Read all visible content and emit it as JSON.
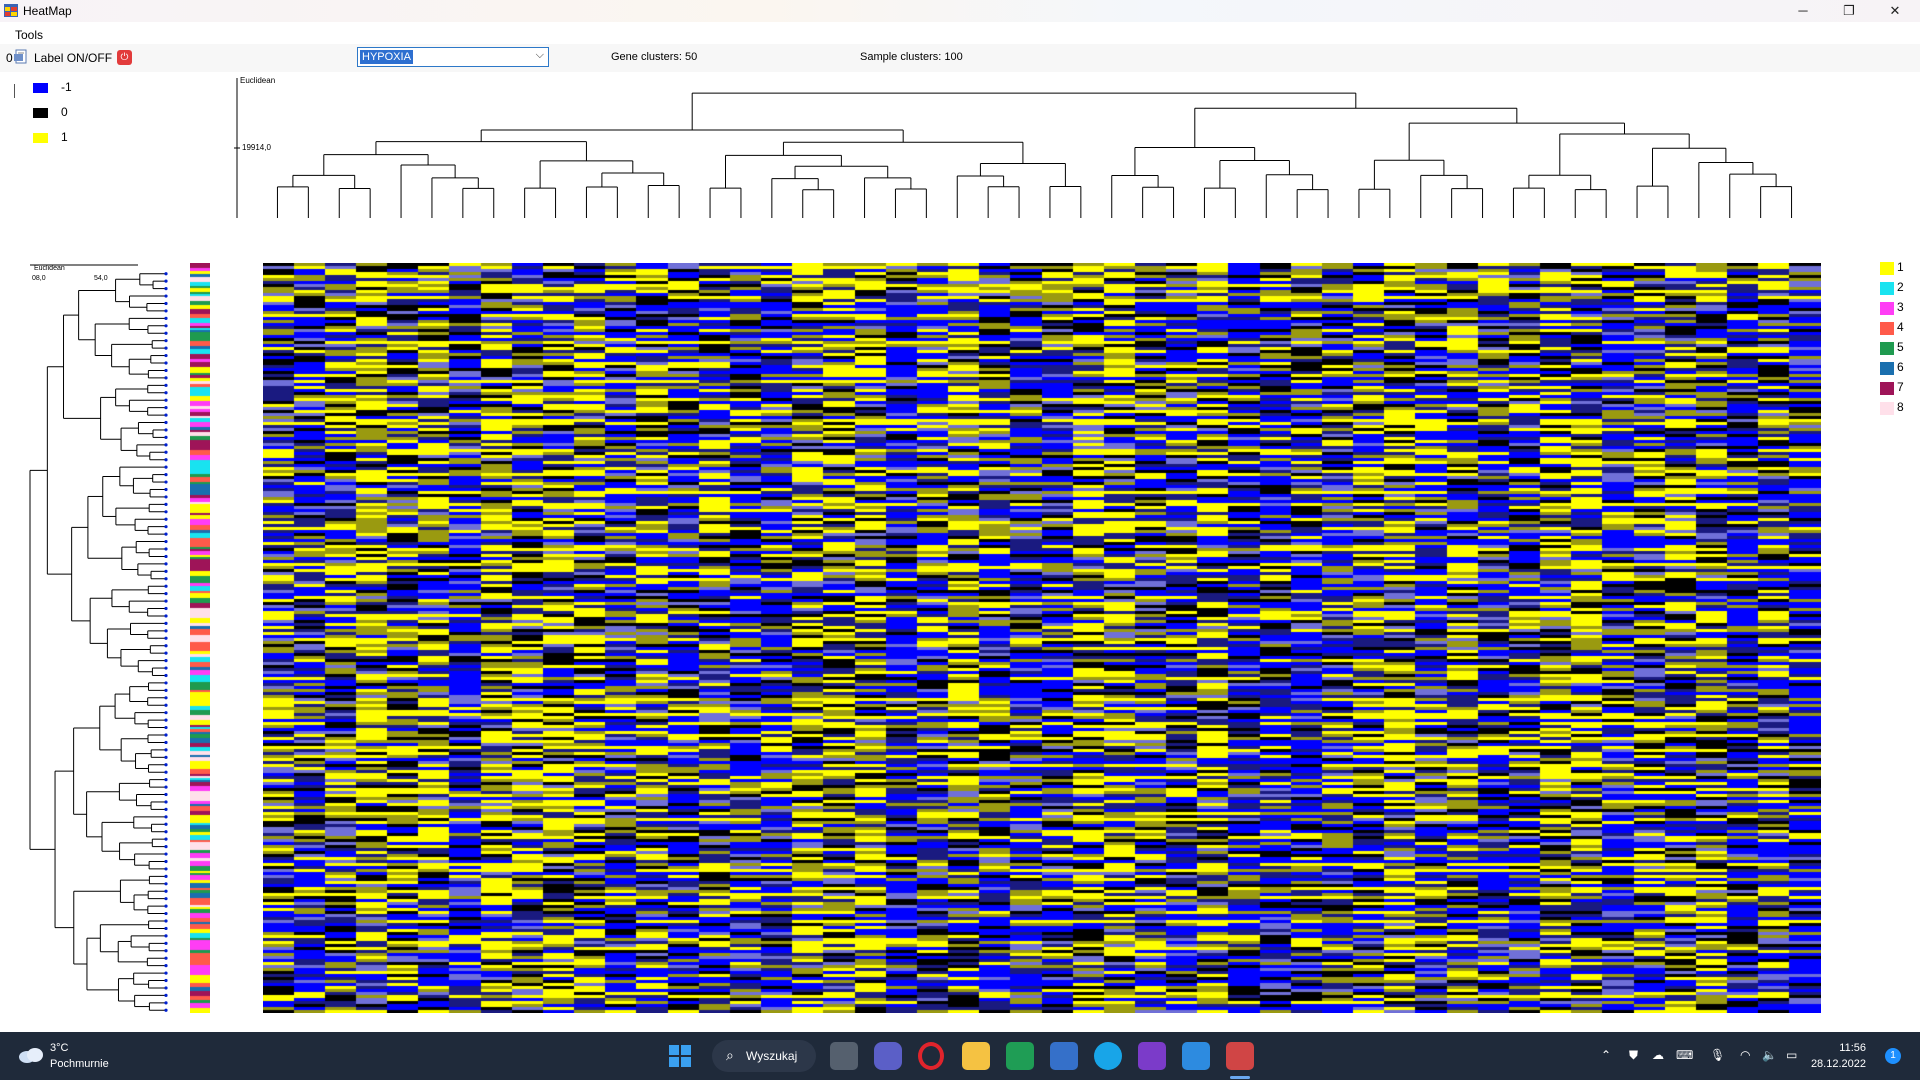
{
  "window": {
    "title": "HeatMap",
    "minimize": "─",
    "restore": "❐",
    "close": "✕"
  },
  "menu": {
    "tools": "Tools"
  },
  "toolbar": {
    "zero": "0",
    "label_toggle": "Label ON/OFF",
    "dataset_value": "HYPOXIA",
    "gene_clusters": "Gene clusters: 50",
    "sample_clusters": "Sample clusters: 100"
  },
  "value_legend": [
    {
      "label": "-1",
      "color": "#0000ff"
    },
    {
      "label": "0",
      "color": "#000000"
    },
    {
      "label": "1",
      "color": "#ffff00"
    }
  ],
  "cluster_legend": [
    {
      "label": "1",
      "color": "#ffff00"
    },
    {
      "label": "2",
      "color": "#19e3f0"
    },
    {
      "label": "3",
      "color": "#ff3df5"
    },
    {
      "label": "4",
      "color": "#ff5a4a"
    },
    {
      "label": "5",
      "color": "#1f9a4f"
    },
    {
      "label": "6",
      "color": "#1a6fae"
    },
    {
      "label": "7",
      "color": "#9e1458"
    },
    {
      "label": "8",
      "color": "#ffe0ea"
    }
  ],
  "top_dendrogram": {
    "axis_title": "Euclidean",
    "axis_value": "19914,0"
  },
  "left_dendrogram": {
    "axis_title": "Euclidean",
    "axis_left": "08,0",
    "axis_right": "54,0"
  },
  "taskbar": {
    "temperature": "3°C",
    "weather": "Pochmurnie",
    "search": "Wyszukaj",
    "time": "11:56",
    "date": "28.12.2022",
    "notifications": "1"
  },
  "icons": {
    "weather": "cloud-icon",
    "start": "windows-icon",
    "search": "search-icon",
    "apps": [
      "task-view-icon",
      "chat-icon",
      "opera-icon",
      "file-explorer-icon",
      "excel-icon",
      "save-icon",
      "skype-icon",
      "visual-studio-icon",
      "notepad-icon",
      "heatmap-app-icon"
    ]
  }
}
